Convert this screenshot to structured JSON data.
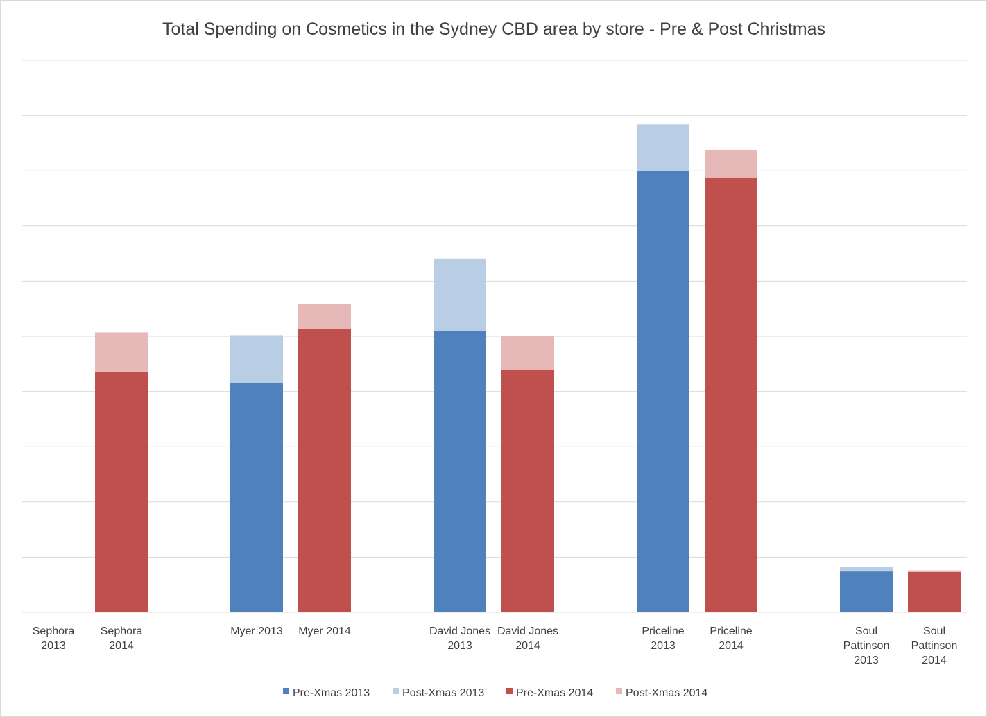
{
  "chart_data": {
    "type": "bar",
    "stacked": true,
    "title": "Total Spending on Cosmetics in the Sydney CBD area by store - Pre & Post Christmas",
    "xlabel": "",
    "ylabel": "",
    "ylim": [
      0,
      10
    ],
    "y_tick_labels_shown": false,
    "grid": true,
    "legend_position": "bottom",
    "categories": [
      [
        "Sephora",
        "2013"
      ],
      [
        "Sephora",
        "2014"
      ],
      [
        "Myer 2013"
      ],
      [
        "Myer 2014"
      ],
      [
        "David Jones",
        "2013"
      ],
      [
        "David Jones",
        "2014"
      ],
      [
        "Priceline",
        "2013"
      ],
      [
        "Priceline",
        "2014"
      ],
      [
        "Soul",
        "Pattinson",
        "2013"
      ],
      [
        "Soul",
        "Pattinson",
        "2014"
      ]
    ],
    "series": [
      {
        "name": "Pre-Xmas 2013",
        "color": "#4f81bd",
        "values": [
          0,
          0,
          4.15,
          0,
          5.1,
          0,
          8.0,
          0,
          0.74,
          0
        ]
      },
      {
        "name": "Post-Xmas 2013",
        "color": "#b9cde5",
        "values": [
          0,
          0,
          0.87,
          0,
          1.31,
          0,
          0.84,
          0,
          0.08,
          0
        ]
      },
      {
        "name": "Pre-Xmas 2014",
        "color": "#c0504d",
        "values": [
          0,
          4.35,
          0,
          5.13,
          0,
          4.4,
          0,
          7.88,
          0,
          0.73
        ]
      },
      {
        "name": "Post-Xmas 2014",
        "color": "#e6b9b8",
        "values": [
          0,
          0.72,
          0,
          0.46,
          0,
          0.6,
          0,
          0.5,
          0,
          0.03
        ]
      }
    ]
  }
}
